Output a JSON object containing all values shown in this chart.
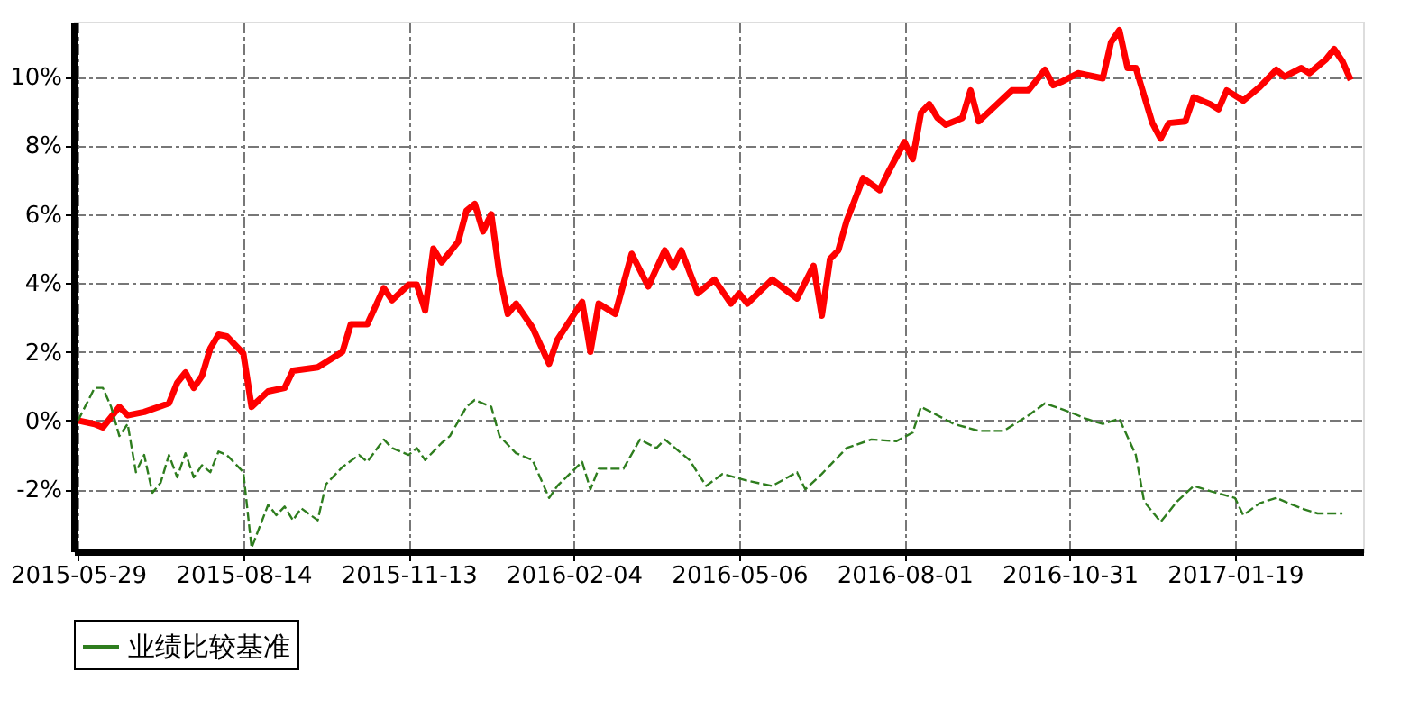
{
  "chart_data": {
    "type": "line",
    "categories": [
      "2015-05-29",
      null,
      null,
      null,
      null,
      null,
      null,
      null,
      null,
      null,
      null,
      null,
      null,
      null,
      null,
      null,
      null,
      null,
      null,
      null,
      "2015-08-14",
      null,
      null,
      null,
      null,
      null,
      null,
      null,
      null,
      null,
      null,
      null,
      null,
      null,
      null,
      null,
      null,
      null,
      null,
      null,
      "2015-11-13",
      null,
      null,
      null,
      null,
      null,
      null,
      null,
      null,
      null,
      null,
      null,
      null,
      null,
      null,
      null,
      null,
      null,
      null,
      null,
      "2016-02-04",
      null,
      null,
      null,
      null,
      null,
      null,
      null,
      null,
      null,
      null,
      null,
      null,
      null,
      null,
      null,
      null,
      null,
      null,
      null,
      "2016-05-06",
      null,
      null,
      null,
      null,
      null,
      null,
      null,
      null,
      null,
      null,
      null,
      null,
      null,
      null,
      null,
      null,
      null,
      null,
      null,
      "2016-08-01",
      null,
      null,
      null,
      null,
      null,
      null,
      null,
      null,
      null,
      null,
      null,
      null,
      null,
      null,
      null,
      null,
      null,
      null,
      null,
      "2016-10-31",
      null,
      null,
      null,
      null,
      null,
      null,
      null,
      null,
      null,
      null,
      null,
      null,
      null,
      null,
      null,
      null,
      null,
      null,
      null,
      "2017-01-19",
      null,
      null,
      null,
      null,
      null,
      null,
      null,
      null,
      null,
      null,
      null,
      null,
      null,
      null,
      null
    ],
    "ylim": [
      -3.8,
      11.6
    ],
    "yticks": [
      {
        "value": -2,
        "label": "-2%"
      },
      {
        "value": 0,
        "label": "0%"
      },
      {
        "value": 2,
        "label": "2%"
      },
      {
        "value": 4,
        "label": "4%"
      },
      {
        "value": 6,
        "label": "6%"
      },
      {
        "value": 8,
        "label": "8%"
      },
      {
        "value": 10,
        "label": "10%"
      }
    ],
    "grid": true,
    "legend": "bottom",
    "series": [
      {
        "color": "#ff0000",
        "line_style": "solid",
        "values": [
          0,
          null,
          -0.1,
          -0.2,
          null,
          0.4,
          0.15,
          null,
          0.25,
          null,
          null,
          0.5,
          1.1,
          1.4,
          0.95,
          1.3,
          2.1,
          2.5,
          2.45,
          null,
          1.95,
          0.4,
          null,
          0.85,
          null,
          0.95,
          1.45,
          null,
          null,
          1.55,
          null,
          null,
          2.0,
          2.8,
          null,
          2.8,
          null,
          3.85,
          3.5,
          null,
          3.95,
          3.95,
          3.2,
          5.0,
          4.6,
          null,
          5.2,
          6.1,
          6.3,
          5.5,
          6.0,
          4.25,
          3.1,
          3.4,
          null,
          2.7,
          null,
          1.65,
          2.35,
          null,
          null,
          3.45,
          2.0,
          3.4,
          null,
          3.1,
          null,
          4.85,
          null,
          3.9,
          null,
          4.95,
          4.45,
          4.95,
          null,
          3.7,
          null,
          4.1,
          null,
          3.4,
          3.7,
          3.4,
          null,
          null,
          4.1,
          null,
          null,
          3.55,
          null,
          4.5,
          3.05,
          4.7,
          4.95,
          5.8,
          null,
          7.05,
          null,
          6.7,
          7.2,
          null,
          8.1,
          7.6,
          8.95,
          9.2,
          8.8,
          8.6,
          null,
          8.8,
          9.6,
          8.7,
          null,
          9.15,
          null,
          9.6,
          null,
          9.6,
          null,
          10.2,
          9.75,
          9.85,
          null,
          10.1,
          null,
          null,
          9.95,
          11.0,
          11.35,
          10.25,
          10.25,
          null,
          8.65,
          8.2,
          8.65,
          null,
          8.7,
          9.4,
          null,
          9.2,
          9.05,
          9.6,
          null,
          9.3,
          null,
          9.7,
          null,
          10.2,
          10.0,
          null,
          10.25,
          10.1,
          null,
          10.5,
          10.8,
          10.45,
          9.9,
          null
        ]
      },
      {
        "name": "业绩比较基准",
        "color": "#2e7d1e",
        "line_style": "dashed",
        "values": [
          0,
          null,
          0.95,
          0.95,
          0.4,
          -0.45,
          -0.1,
          -1.5,
          -1.0,
          -2.1,
          -1.8,
          -1.0,
          -1.65,
          -0.95,
          -1.65,
          -1.3,
          -1.5,
          -0.9,
          -1.0,
          null,
          -1.5,
          -3.7,
          null,
          -2.45,
          -2.75,
          -2.5,
          -2.9,
          -2.55,
          null,
          -2.9,
          -1.85,
          null,
          -1.35,
          null,
          -1.0,
          -1.2,
          null,
          -0.55,
          -0.8,
          null,
          -1.0,
          -0.8,
          -1.15,
          null,
          -0.65,
          -0.45,
          null,
          0.4,
          0.6,
          null,
          0.4,
          -0.45,
          null,
          -0.95,
          null,
          -1.15,
          null,
          -2.25,
          -1.9,
          null,
          null,
          -1.2,
          -2.0,
          -1.4,
          null,
          null,
          -1.4,
          null,
          -0.55,
          null,
          -0.8,
          -0.55,
          null,
          null,
          -1.15,
          null,
          -1.9,
          null,
          -1.55,
          null,
          null,
          -1.75,
          null,
          null,
          -1.9,
          null,
          null,
          -1.5,
          -2.0,
          null,
          -1.55,
          null,
          null,
          -0.8,
          null,
          null,
          -0.55,
          null,
          null,
          -0.6,
          null,
          -0.35,
          0.4,
          null,
          0.15,
          null,
          -0.1,
          null,
          null,
          -0.3,
          null,
          null,
          -0.3,
          null,
          null,
          0.15,
          null,
          0.5,
          null,
          null,
          0.25,
          null,
          0.05,
          null,
          -0.1,
          null,
          0.05,
          null,
          -1.0,
          -2.35,
          null,
          -2.95,
          null,
          -2.35,
          null,
          -1.9,
          null,
          -2.05,
          null,
          null,
          -2.25,
          -2.75,
          null,
          -2.4,
          null,
          -2.25,
          null,
          null,
          -2.55,
          null,
          -2.7,
          null,
          null,
          -2.7,
          null,
          null
        ]
      }
    ]
  }
}
